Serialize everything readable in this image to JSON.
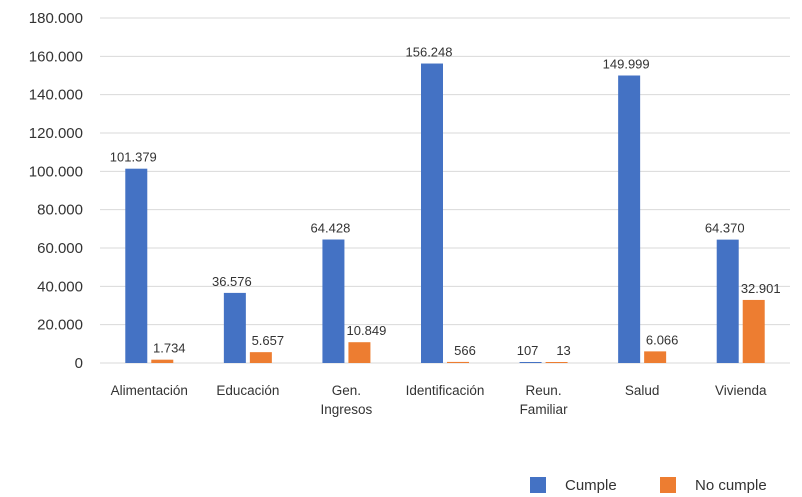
{
  "chart_data": {
    "type": "bar",
    "categories": [
      [
        "Alimentación"
      ],
      [
        "Educación"
      ],
      [
        "Gen.",
        "Ingresos"
      ],
      [
        "Identificación"
      ],
      [
        "Reun.",
        "Familiar"
      ],
      [
        "Salud"
      ],
      [
        "Vivienda"
      ]
    ],
    "series": [
      {
        "name": "Cumple",
        "color": "#4472c4",
        "values": [
          101379,
          36576,
          64428,
          156248,
          107,
          149999,
          64370
        ],
        "labels": [
          "101.379",
          "36.576",
          "64.428",
          "156.248",
          "107",
          "149.999",
          "64.370"
        ]
      },
      {
        "name": "No cumple",
        "color": "#ed7d31",
        "values": [
          1734,
          5657,
          10849,
          566,
          13,
          6066,
          32901
        ],
        "labels": [
          "1.734",
          "5.657",
          "10.849",
          "566",
          "13",
          "6.066",
          "32.901"
        ]
      }
    ],
    "ylim": [
      0,
      180000
    ],
    "yticks": [
      0,
      20000,
      40000,
      60000,
      80000,
      100000,
      120000,
      140000,
      160000,
      180000
    ],
    "ytick_labels": [
      "0",
      "20.000",
      "40.000",
      "60.000",
      "80.000",
      "100.000",
      "120.000",
      "140.000",
      "160.000",
      "180.000"
    ],
    "grid": true,
    "legend_position": "bottom-right"
  }
}
